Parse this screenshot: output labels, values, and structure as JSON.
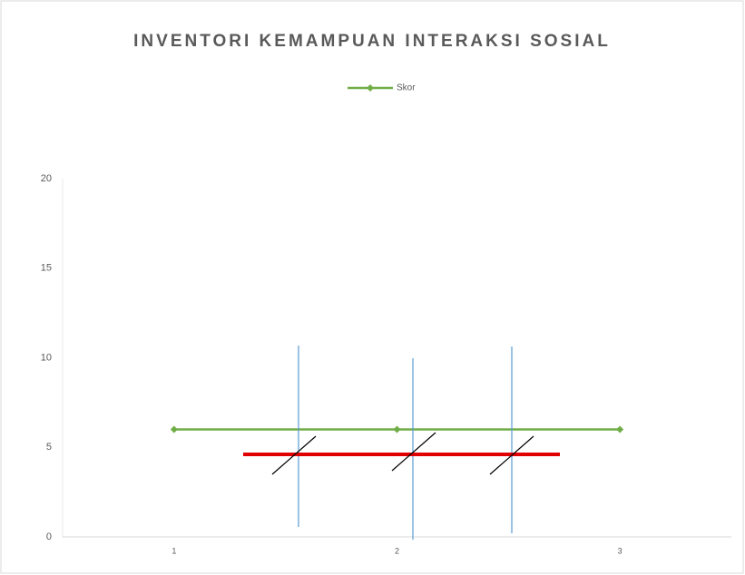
{
  "chart_data": {
    "type": "line",
    "title": "INVENTORI KEMAMPUAN INTERAKSI SOSIAL",
    "categories": [
      "1",
      "2",
      "3"
    ],
    "series": [
      {
        "name": "Skor",
        "color": "#70ad47",
        "values": [
          6,
          6,
          6
        ]
      }
    ],
    "ylim": [
      0,
      20
    ],
    "yticks": [
      0,
      5,
      10,
      15,
      20
    ],
    "grid": false,
    "legend": "top"
  }
}
